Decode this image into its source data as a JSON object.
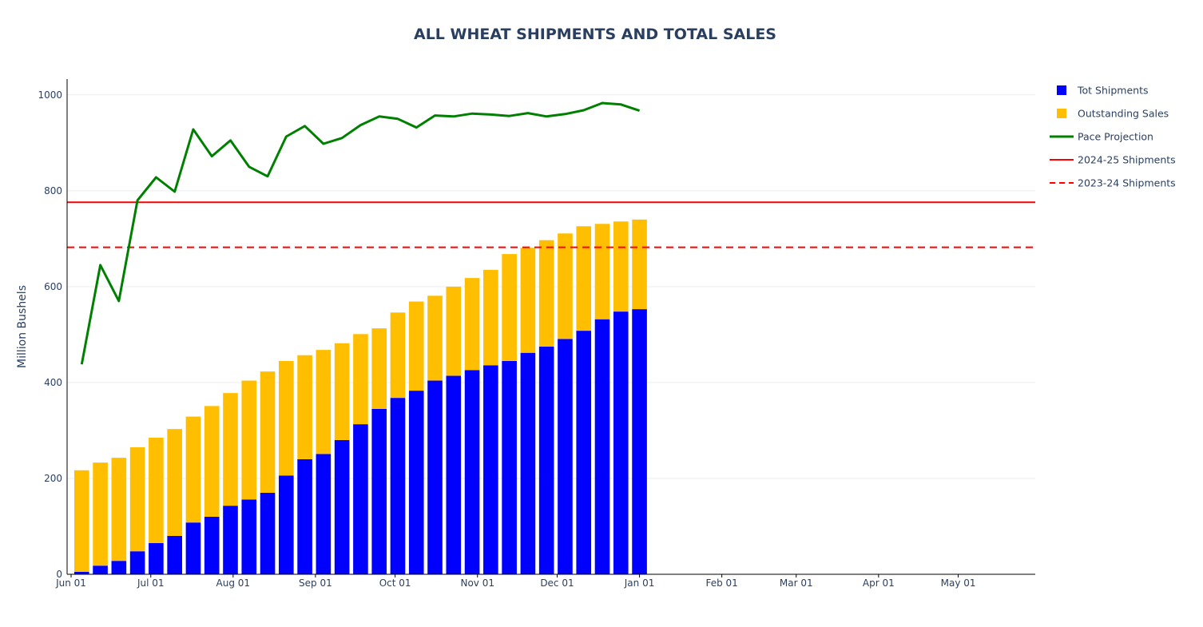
{
  "chart_data": {
    "type": "bar",
    "title": "ALL WHEAT SHIPMENTS AND TOTAL SALES",
    "xlabel": "",
    "ylabel": "Million Bushels",
    "ylim": [
      0,
      1033
    ],
    "yticks": [
      0,
      200,
      400,
      600,
      800,
      1000
    ],
    "x_range_days": [
      -1.5,
      363
    ],
    "xticks": [
      {
        "label": "Jun 01",
        "day": 0
      },
      {
        "label": "Jul 01",
        "day": 30
      },
      {
        "label": "Aug 01",
        "day": 61
      },
      {
        "label": "Sep 01",
        "day": 92
      },
      {
        "label": "Oct 01",
        "day": 122
      },
      {
        "label": "Nov 01",
        "day": 153
      },
      {
        "label": "Dec 01",
        "day": 183
      },
      {
        "label": "Jan 01",
        "day": 214
      },
      {
        "label": "Feb 01",
        "day": 245
      },
      {
        "label": "Mar 01",
        "day": 273
      },
      {
        "label": "Apr 01",
        "day": 304
      },
      {
        "label": "May 01",
        "day": 334
      }
    ],
    "weeks_day_offset": [
      4,
      11,
      18,
      25,
      32,
      39,
      46,
      53,
      60,
      67,
      74,
      81,
      88,
      95,
      102,
      109,
      116,
      123,
      130,
      137,
      144,
      151,
      158,
      165,
      172,
      179,
      186,
      193,
      200,
      207,
      214
    ],
    "series": [
      {
        "name": "Tot Shipments",
        "kind": "bar",
        "color": "#0000ff",
        "values": [
          5,
          18,
          28,
          48,
          65,
          80,
          108,
          120,
          143,
          156,
          170,
          206,
          240,
          251,
          280,
          313,
          345,
          368,
          383,
          404,
          414,
          426,
          436,
          445,
          462,
          475,
          491,
          508,
          532,
          548,
          553
        ]
      },
      {
        "name": "Outstanding Sales",
        "kind": "bar",
        "color": "#ffbf00",
        "values": [
          212,
          215,
          215,
          217,
          220,
          223,
          221,
          231,
          235,
          248,
          253,
          239,
          217,
          217,
          202,
          188,
          168,
          178,
          186,
          177,
          186,
          192,
          199,
          223,
          219,
          222,
          220,
          218,
          199,
          188,
          187
        ]
      },
      {
        "name": "Pace Projection",
        "kind": "line",
        "color": "#008000",
        "values": [
          438,
          645,
          570,
          780,
          828,
          798,
          928,
          872,
          905,
          850,
          830,
          913,
          935,
          898,
          910,
          937,
          955,
          950,
          932,
          957,
          955,
          961,
          959,
          956,
          962,
          955,
          960,
          968,
          983,
          980,
          967
        ]
      },
      {
        "name": "2024-25 Shipments",
        "kind": "hline",
        "color": "#ff0000",
        "dash": "solid",
        "value": 776
      },
      {
        "name": "2023-24 Shipments",
        "kind": "hline",
        "color": "#ff0000",
        "dash": "dash",
        "value": 682
      }
    ],
    "legend_position": "top-right",
    "grid": true
  }
}
